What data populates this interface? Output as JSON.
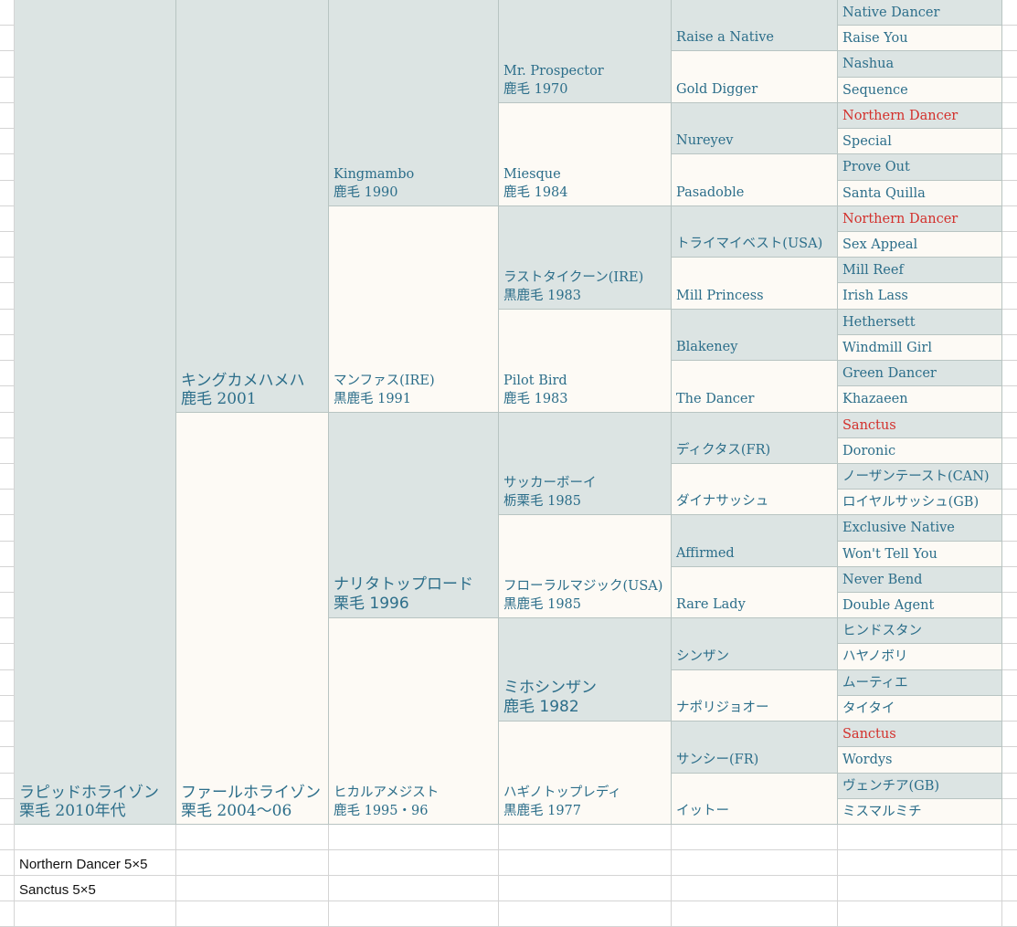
{
  "colors": {
    "sire_bg": "#dce4e3",
    "dam_bg": "#fdfaf5",
    "text": "#2c6e8a",
    "highlight": "#d3302c"
  },
  "pedigree": {
    "gen0": [
      {
        "name": "ラピッドホライゾン",
        "info": "栗毛 2010年代"
      }
    ],
    "gen1": [
      {
        "name": "キングカメハメハ",
        "info": "鹿毛 2001"
      },
      {
        "name": "ファールホライゾン",
        "info": "栗毛 2004〜06"
      }
    ],
    "gen2": [
      {
        "name": "Kingmambo",
        "info": "鹿毛 1990"
      },
      {
        "name": "マンファス(IRE)",
        "info": "黒鹿毛 1991"
      },
      {
        "name": "ナリタトップロード",
        "info": "栗毛 1996"
      },
      {
        "name": "ヒカルアメジスト",
        "info": "鹿毛 1995・96"
      }
    ],
    "gen3": [
      {
        "name": "Mr. Prospector",
        "info": "鹿毛 1970"
      },
      {
        "name": "Miesque",
        "info": "鹿毛 1984"
      },
      {
        "name": "ラストタイクーン(IRE)",
        "info": "黒鹿毛 1983"
      },
      {
        "name": "Pilot Bird",
        "info": "鹿毛 1983"
      },
      {
        "name": "サッカーボーイ",
        "info": "栃栗毛 1985"
      },
      {
        "name": "フローラルマジック(USA)",
        "info": "黒鹿毛 1985"
      },
      {
        "name": "ミホシンザン",
        "info": "鹿毛 1982"
      },
      {
        "name": "ハギノトップレディ",
        "info": "黒鹿毛 1977"
      }
    ],
    "gen4": [
      "Raise a Native",
      "Gold Digger",
      "Nureyev",
      "Pasadoble",
      "トライマイベスト(USA)",
      "Mill Princess",
      "Blakeney",
      "The Dancer",
      "ディクタス(FR)",
      "ダイナサッシュ",
      "Affirmed",
      "Rare Lady",
      "シンザン",
      "ナポリジョオー",
      "サンシー(FR)",
      "イットー"
    ],
    "gen5": [
      "Native Dancer",
      "Raise You",
      "Nashua",
      "Sequence",
      "Northern Dancer",
      "Special",
      "Prove Out",
      "Santa Quilla",
      "Northern Dancer",
      "Sex Appeal",
      "Mill Reef",
      "Irish Lass",
      "Hethersett",
      "Windmill Girl",
      "Green Dancer",
      "Khazaeen",
      "Sanctus",
      "Doronic",
      "ノーザンテースト(CAN)",
      "ロイヤルサッシュ(GB)",
      "Exclusive Native",
      "Won't Tell You",
      "Never Bend",
      "Double Agent",
      "ヒンドスタン",
      "ハヤノボリ",
      "ムーティエ",
      "タイタイ",
      "Sanctus",
      "Wordys",
      "ヴェンチア(GB)",
      "ミスマルミチ"
    ]
  },
  "highlighted_gen5": [
    4,
    8,
    16,
    28
  ],
  "large_text_gen2": [
    2
  ],
  "large_text_gen3": [
    6
  ],
  "notes": [
    "Northern Dancer 5×5",
    "Sanctus 5×5"
  ]
}
